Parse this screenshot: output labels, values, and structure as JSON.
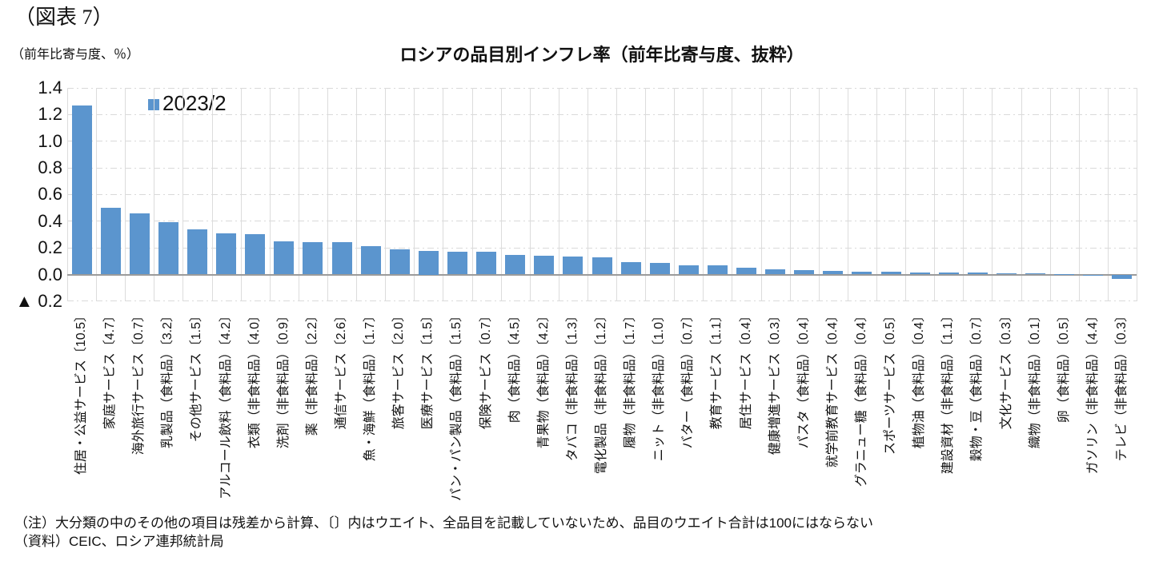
{
  "figure_label": "（図表 7）",
  "unit_label": "（前年比寄与度、％）",
  "notes": {
    "note": "（注）大分類の中のその他の項目は残差から計算、〔〕内はウエイト、全品目を記載していないため、品目のウエイト合計は100にはならない",
    "source": "（資料）CEIC、ロシア連邦統計局"
  },
  "chart_data": {
    "type": "bar",
    "title": "ロシアの品目別インフレ率（前年比寄与度、抜粋）",
    "ylabel": "（前年比寄与度、％）",
    "legend": [
      {
        "name": "2023/2",
        "color": "#5B95CE"
      }
    ],
    "legend_position": "top-left-inside",
    "bar_color": "#5B95CE",
    "grid": true,
    "gridline_color": "#D9D9D9",
    "zero_axis_color": "#9B9B9B",
    "ylim": [
      -0.2,
      1.4
    ],
    "ytick_values": [
      1.4,
      1.2,
      1.0,
      0.8,
      0.6,
      0.4,
      0.2,
      0.0,
      -0.2
    ],
    "ytick_labels": [
      "1.4",
      "1.2",
      "1.0",
      "0.8",
      "0.6",
      "0.4",
      "0.2",
      "0.0",
      "▲ 0.2"
    ],
    "categories": [
      "住居・公益サービス〔10.5〕",
      "家庭サービス〔4.7〕",
      "海外旅行サービス〔0.7〕",
      "乳製品（食料品）〔3.2〕",
      "その他サービス〔1.5〕",
      "アルコール飲料（食料品）〔4.2〕",
      "衣類（非食料品）〔4.0〕",
      "洗剤（非食料品）〔0.9〕",
      "薬（非食料品）〔2.2〕",
      "通信サービス〔2.6〕",
      "魚・海鮮（食料品）〔1.7〕",
      "旅客サービス〔2.0〕",
      "医療サービス〔1.5〕",
      "パン・パン製品（食料品）〔1.5〕",
      "保険サービス〔0.7〕",
      "肉（食料品）〔4.5〕",
      "青果物（食料品）〔4.2〕",
      "タバコ（非食料品）〔1.3〕",
      "電化製品（非食料品）〔1.2〕",
      "履物（非食料品）〔1.7〕",
      "ニット（非食料品）〔1.0〕",
      "バター（食料品）〔0.7〕",
      "教育サービス〔1.1〕",
      "居住サービス〔0.4〕",
      "健康増進サービス〔0.3〕",
      "パスタ（食料品）〔0.4〕",
      "就学前教育サービス〔0.4〕",
      "グラニュー糖（食料品）〔0.4〕",
      "スポーツサービス〔0.5〕",
      "植物油（食料品）〔0.4〕",
      "建設資材（非食料品）〔1.1〕",
      "穀物・豆（食料品）〔0.7〕",
      "文化サービス〔0.3〕",
      "織物（非食料品）〔0.1〕",
      "卵（食料品）〔0.5〕",
      "ガソリン（非食料品）〔4.4〕",
      "テレビ（非食料品）〔0.3〕"
    ],
    "values": [
      1.27,
      0.5,
      0.46,
      0.39,
      0.34,
      0.31,
      0.3,
      0.25,
      0.245,
      0.24,
      0.215,
      0.19,
      0.175,
      0.17,
      0.168,
      0.145,
      0.14,
      0.132,
      0.128,
      0.095,
      0.085,
      0.07,
      0.068,
      0.05,
      0.038,
      0.03,
      0.028,
      0.022,
      0.02,
      0.016,
      0.015,
      0.013,
      0.01,
      0.006,
      0.002,
      -0.008,
      -0.035
    ]
  }
}
